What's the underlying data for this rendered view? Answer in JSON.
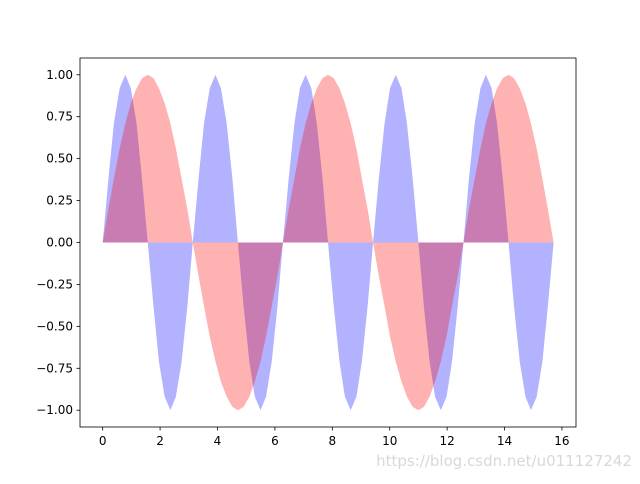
{
  "chart_data": {
    "type": "area",
    "x": [
      0,
      0.2,
      0.39,
      0.59,
      0.79,
      0.98,
      1.18,
      1.37,
      1.57,
      1.77,
      1.96,
      2.16,
      2.36,
      2.55,
      2.75,
      2.95,
      3.14,
      3.34,
      3.53,
      3.73,
      3.93,
      4.12,
      4.32,
      4.52,
      4.71,
      4.91,
      5.11,
      5.3,
      5.5,
      5.69,
      5.89,
      6.09,
      6.28,
      6.48,
      6.68,
      6.87,
      7.07,
      7.27,
      7.46,
      7.66,
      7.85,
      8.05,
      8.25,
      8.44,
      8.64,
      8.84,
      9.03,
      9.23,
      9.42,
      9.62,
      9.82,
      10.01,
      10.21,
      10.41,
      10.6,
      10.8,
      11,
      11.19,
      11.39,
      11.58,
      11.78,
      11.98,
      12.17,
      12.37,
      12.57,
      12.76,
      12.96,
      13.16,
      13.35,
      13.55,
      13.74,
      13.94,
      14.14,
      14.33,
      14.53,
      14.73,
      14.92,
      15.12,
      15.32,
      15.51,
      15.71
    ],
    "series": [
      {
        "color": "blue",
        "values": [
          0,
          0.38,
          0.71,
          0.92,
          1,
          0.92,
          0.71,
          0.38,
          0,
          -0.38,
          -0.71,
          -0.92,
          -1,
          -0.92,
          -0.71,
          -0.38,
          0,
          0.38,
          0.71,
          0.92,
          1,
          0.92,
          0.71,
          0.38,
          0,
          -0.38,
          -0.71,
          -0.92,
          -1,
          -0.92,
          -0.71,
          -0.38,
          0,
          0.38,
          0.71,
          0.92,
          1,
          0.92,
          0.71,
          0.38,
          0,
          -0.38,
          -0.71,
          -0.92,
          -1,
          -0.92,
          -0.71,
          -0.38,
          0,
          0.38,
          0.71,
          0.92,
          1,
          0.92,
          0.71,
          0.38,
          0,
          -0.38,
          -0.71,
          -0.92,
          -1,
          -0.92,
          -0.71,
          -0.38,
          0,
          0.38,
          0.71,
          0.92,
          1,
          0.92,
          0.71,
          0.38,
          0,
          -0.38,
          -0.71,
          -0.92,
          -1,
          -0.92,
          -0.71,
          -0.38,
          0
        ]
      },
      {
        "color": "red",
        "values": [
          0,
          0.2,
          0.38,
          0.56,
          0.71,
          0.83,
          0.92,
          0.98,
          1,
          0.98,
          0.92,
          0.83,
          0.71,
          0.56,
          0.38,
          0.2,
          0,
          -0.2,
          -0.38,
          -0.56,
          -0.71,
          -0.83,
          -0.92,
          -0.98,
          -1,
          -0.98,
          -0.92,
          -0.83,
          -0.71,
          -0.56,
          -0.38,
          -0.2,
          0,
          0.2,
          0.38,
          0.56,
          0.71,
          0.83,
          0.92,
          0.98,
          1,
          0.98,
          0.92,
          0.83,
          0.71,
          0.56,
          0.38,
          0.2,
          0,
          -0.2,
          -0.38,
          -0.56,
          -0.71,
          -0.83,
          -0.92,
          -0.98,
          -1,
          -0.98,
          -0.92,
          -0.83,
          -0.71,
          -0.56,
          -0.38,
          -0.2,
          0,
          0.2,
          0.38,
          0.56,
          0.71,
          0.83,
          0.92,
          0.98,
          1,
          0.98,
          0.92,
          0.83,
          0.71,
          0.56,
          0.38,
          0.2,
          0
        ]
      }
    ],
    "alpha": 0.3,
    "xlim": [
      -0.79,
      16.49
    ],
    "ylim": [
      -1.1,
      1.1
    ],
    "xticks": [
      0,
      2,
      4,
      6,
      8,
      10,
      12,
      14,
      16
    ],
    "yticks": [
      {
        "value": -1,
        "label": "−1.00"
      },
      {
        "value": -0.75,
        "label": "−0.75"
      },
      {
        "value": -0.5,
        "label": "−0.50"
      },
      {
        "value": -0.25,
        "label": "−0.25"
      },
      {
        "value": 0,
        "label": "0.00"
      },
      {
        "value": 0.25,
        "label": "0.25"
      },
      {
        "value": 0.5,
        "label": "0.50"
      },
      {
        "value": 0.75,
        "label": "0.75"
      },
      {
        "value": 1,
        "label": "1.00"
      }
    ],
    "grid": false,
    "watermark": "https://blog.csdn.net/u011127242"
  }
}
